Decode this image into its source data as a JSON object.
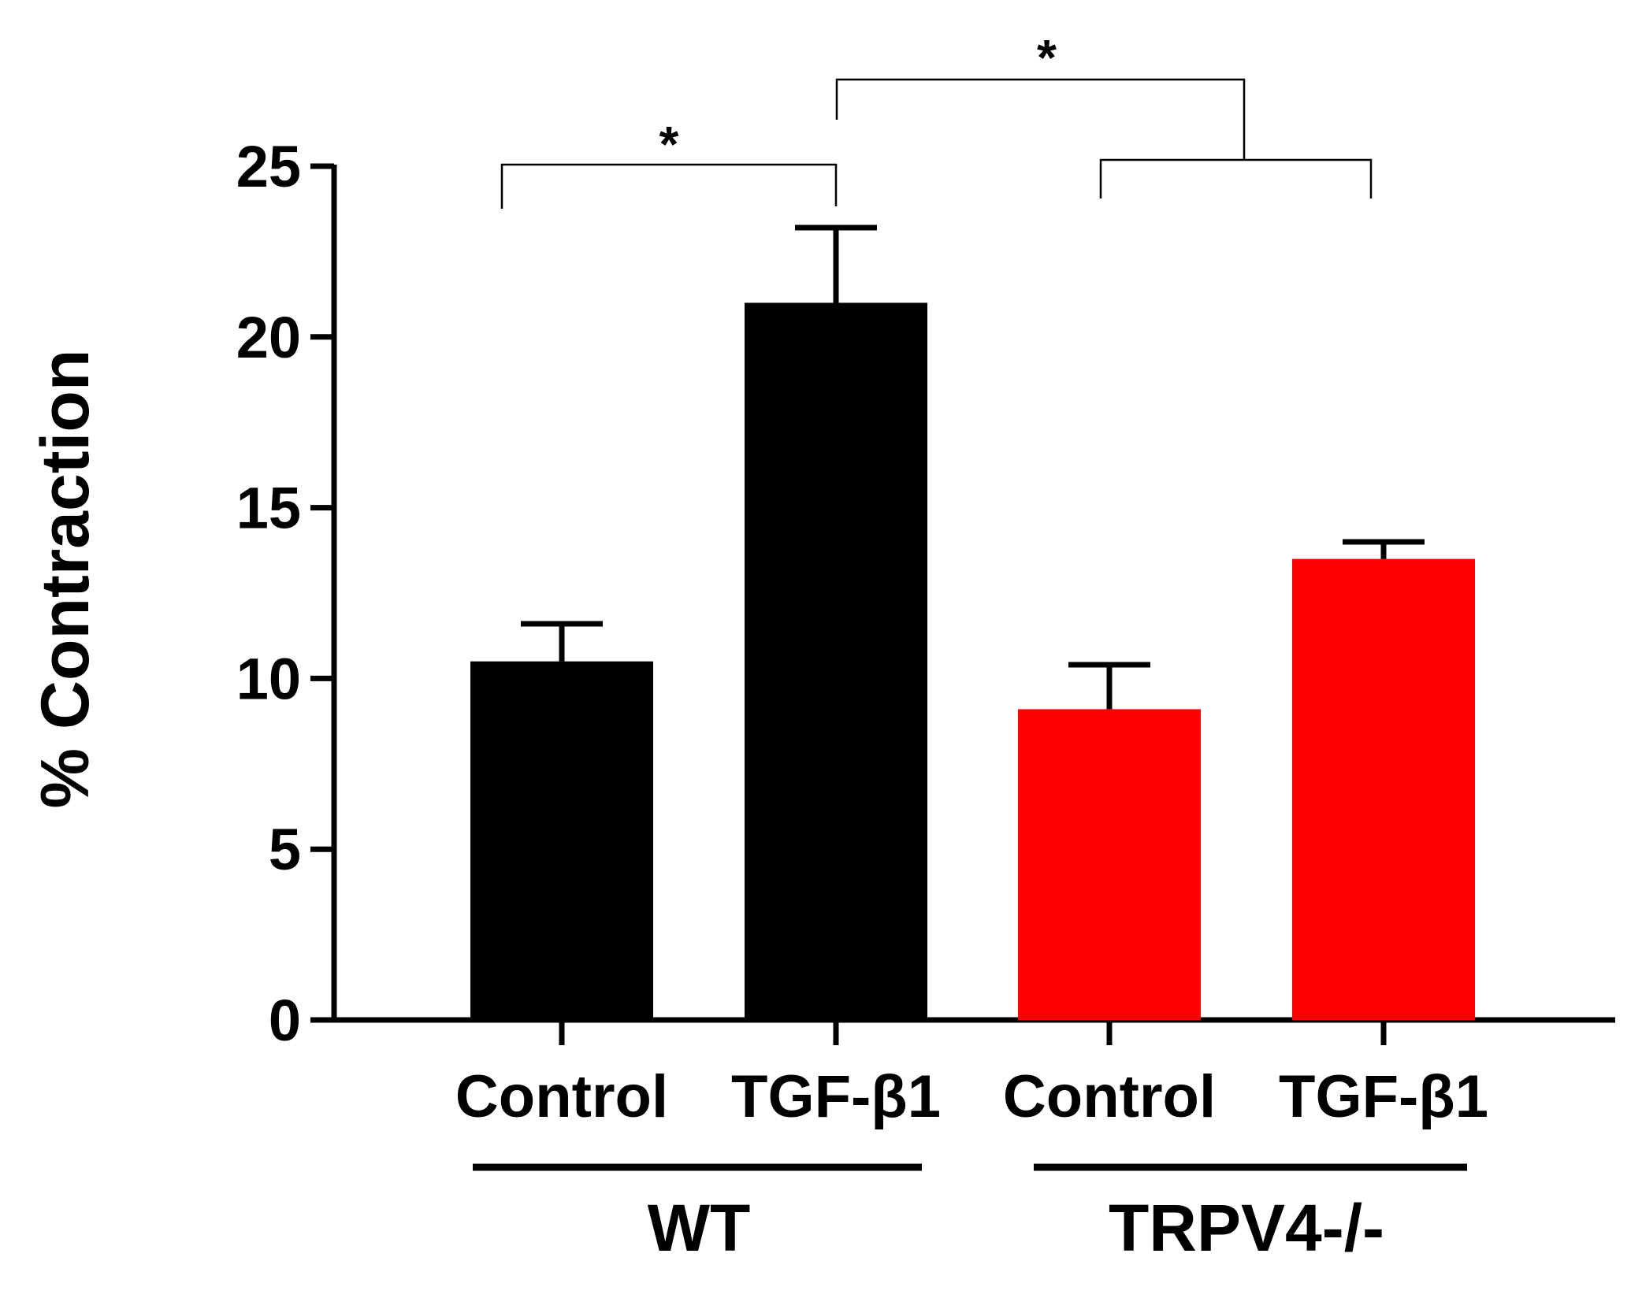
{
  "chart_data": {
    "type": "bar",
    "title": "",
    "xlabel": "",
    "ylabel": "% Contraction",
    "ylim": [
      0,
      25
    ],
    "yticks": [
      0,
      5,
      10,
      15,
      20,
      25
    ],
    "grid": false,
    "bars": [
      {
        "category": "Control",
        "group": "WT",
        "value": 10.5,
        "error": 1.1,
        "color": "#000000"
      },
      {
        "category": "TGF-β1",
        "group": "WT",
        "value": 21.0,
        "error": 2.2,
        "color": "#000000"
      },
      {
        "category": "Control",
        "group": "TRPV4-/-",
        "value": 9.1,
        "error": 1.3,
        "color": "#ff0000"
      },
      {
        "category": "TGF-β1",
        "group": "TRPV4-/-",
        "value": 13.5,
        "error": 0.5,
        "color": "#ff0000"
      }
    ],
    "groups": [
      {
        "label": "WT",
        "bars": [
          0,
          1
        ]
      },
      {
        "label": "TRPV4-/-",
        "bars": [
          2,
          3
        ]
      }
    ],
    "significance": [
      {
        "label": "*",
        "from": [
          0
        ],
        "to": [
          1
        ]
      },
      {
        "label": "*",
        "from": [
          1
        ],
        "to": [
          2,
          3
        ]
      }
    ]
  }
}
